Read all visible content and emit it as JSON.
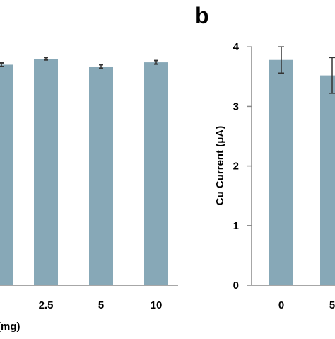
{
  "colors": {
    "bar": "#87a8b7",
    "axis": "#8a8a8a",
    "errorbar": "#333333"
  },
  "chart_data": [
    {
      "type": "bar",
      "panel": "a",
      "categories": [
        "",
        "2.5",
        "5",
        "10"
      ],
      "values": [
        3.7,
        3.8,
        3.67,
        3.74
      ],
      "errors": [
        0.03,
        0.02,
        0.03,
        0.03
      ],
      "xlabel": "(mg)",
      "ylabel": "",
      "ylim": [
        0,
        4.3
      ],
      "grid": false
    },
    {
      "type": "bar",
      "panel": "b",
      "title": "b",
      "categories": [
        "0",
        "5"
      ],
      "values": [
        3.78,
        3.52
      ],
      "errors": [
        0.22,
        0.3
      ],
      "xlabel": "",
      "ylabel": "Cu Current (μA)",
      "yticks": [
        "0",
        "1",
        "2",
        "3",
        "4"
      ],
      "ylim": [
        0,
        4.3
      ],
      "grid": false
    }
  ]
}
